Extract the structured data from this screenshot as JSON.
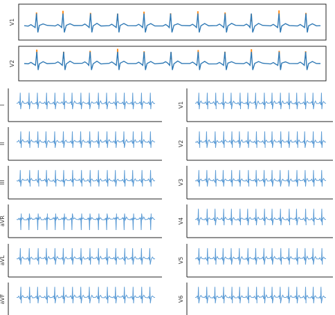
{
  "chart_data": [
    {
      "type": "line",
      "title": "",
      "panel": "top-highlighted",
      "series": [
        {
          "lead": "V1",
          "beats": 11,
          "annotation_color": "#ff8c1a",
          "trace_color": "#2f79b5",
          "noise": [
            0.1,
            -0.3,
            0.2,
            0.4,
            -0.1,
            0.3,
            -0.2,
            0.1,
            0.5,
            -0.4,
            0.2
          ]
        },
        {
          "lead": "V2",
          "beats": 11,
          "annotation_color": "#ff8c1a",
          "trace_color": "#2f79b5",
          "noise": [
            -0.2,
            0.3,
            0.1,
            -0.4,
            0.2,
            0.5,
            -0.1,
            0.3,
            -0.3,
            0.1,
            0.2
          ]
        }
      ],
      "ylim": [
        -1,
        1
      ]
    },
    {
      "type": "line",
      "title": "",
      "panel": "12-lead",
      "color": "#5b9bd5",
      "left_leads": [
        "I",
        "II",
        "III",
        "aVR",
        "aVL",
        "aVF"
      ],
      "right_leads": [
        "V1",
        "V2",
        "V3",
        "V4",
        "V5",
        "V6"
      ],
      "beats_per_lead": 16,
      "ylim": [
        -1,
        1
      ]
    }
  ],
  "colors": {
    "highlight_trace": "#2f79b5",
    "highlight_marks": "#ff8c1a",
    "lead_trace": "#5b9bd5",
    "axis": "#222222"
  }
}
